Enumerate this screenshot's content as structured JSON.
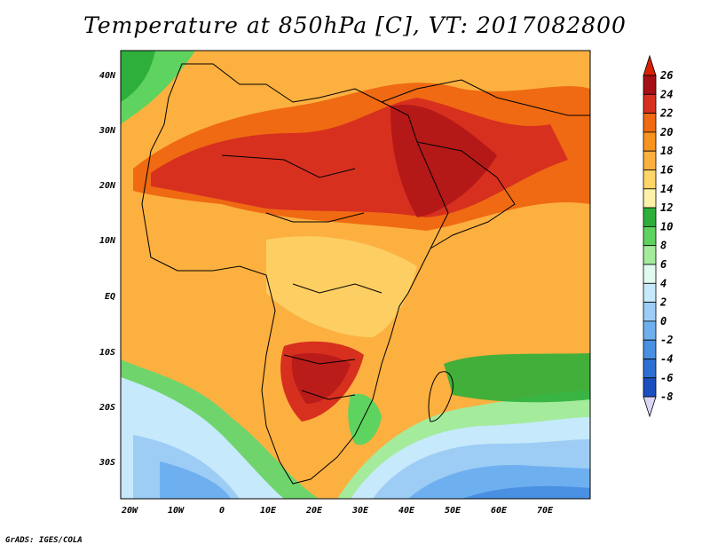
{
  "title": "Temperature at 850hPa [C], VT: 2017082800",
  "credit": "GrADS: IGES/COLA",
  "lat_labels": [
    "40N",
    "30N",
    "20N",
    "10N",
    "EQ",
    "10S",
    "20S",
    "30S"
  ],
  "lon_labels": [
    "20W",
    "10W",
    "0",
    "10E",
    "20E",
    "30E",
    "40E",
    "50E",
    "60E",
    "70E"
  ],
  "colorbar": {
    "labels": [
      "26",
      "24",
      "22",
      "20",
      "18",
      "16",
      "14",
      "12",
      "10",
      "8",
      "6",
      "4",
      "2",
      "0",
      "-2",
      "-4",
      "-6",
      "-8"
    ],
    "colors": [
      "#a50f15",
      "#d7301f",
      "#ef6a12",
      "#f7931e",
      "#fcb040",
      "#fdd66a",
      "#fef2a8",
      "#2eaf3b",
      "#5fd35f",
      "#a4eb9c",
      "#e2fbf1",
      "#c6e9fb",
      "#9dcdf5",
      "#6eb0ef",
      "#4a90e2",
      "#2f6fd3",
      "#1b4fbf",
      "#0d2f8f"
    ],
    "over_color": "#d62000",
    "under_color": "#dcd6f5"
  }
}
